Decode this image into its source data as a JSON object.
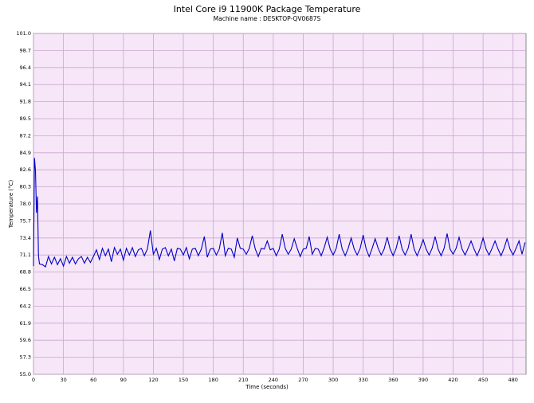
{
  "chart_data": {
    "type": "line",
    "title": "Intel Core i9 11900K Package Temperature",
    "subtitle": "Machine name : DESKTOP-QV0687S",
    "x_label": "Time (seconds)",
    "y_label": "Temperature (°C)",
    "xlim": [
      0,
      493
    ],
    "xticks": [
      0,
      30,
      60,
      90,
      120,
      150,
      180,
      210,
      240,
      270,
      300,
      330,
      360,
      390,
      420,
      450,
      480
    ],
    "ylim": [
      55,
      101
    ],
    "yticks": [
      {
        "value": 55,
        "label": "55.0"
      },
      57.3,
      59.6,
      61.9,
      64.2,
      66.5,
      68.8,
      71.1,
      73.4,
      75.7,
      {
        "value": 78,
        "label": "78.0"
      },
      80.3,
      82.6,
      84.9,
      87.2,
      89.5,
      91.8,
      94.1,
      96.4,
      98.7,
      {
        "value": 101,
        "label": "101.0"
      }
    ],
    "grid": true,
    "title_color": "#1a8a1a",
    "background": "#f6e6f8",
    "series": [
      {
        "color": "#0000c8",
        "x": [
          0,
          1,
          2,
          3,
          4,
          5,
          6,
          9,
          12,
          15,
          18,
          21,
          24,
          27,
          30,
          33,
          36,
          39,
          42,
          45,
          48,
          51,
          54,
          57,
          60,
          63,
          66,
          69,
          72,
          75,
          78,
          81,
          84,
          87,
          90,
          93,
          96,
          99,
          102,
          105,
          108,
          111,
          114,
          117,
          120,
          123,
          126,
          129,
          132,
          135,
          138,
          141,
          144,
          147,
          150,
          153,
          156,
          159,
          162,
          165,
          168,
          171,
          174,
          177,
          180,
          183,
          186,
          189,
          192,
          195,
          198,
          201,
          204,
          207,
          210,
          213,
          216,
          219,
          222,
          225,
          228,
          231,
          234,
          237,
          240,
          243,
          246,
          249,
          252,
          255,
          258,
          261,
          264,
          267,
          270,
          273,
          276,
          279,
          282,
          285,
          288,
          291,
          294,
          297,
          300,
          303,
          306,
          309,
          312,
          315,
          318,
          321,
          324,
          327,
          330,
          333,
          336,
          339,
          342,
          345,
          348,
          351,
          354,
          357,
          360,
          363,
          366,
          369,
          372,
          375,
          378,
          381,
          384,
          387,
          390,
          393,
          396,
          399,
          402,
          405,
          408,
          411,
          414,
          417,
          420,
          423,
          426,
          429,
          432,
          435,
          438,
          441,
          444,
          447,
          450,
          453,
          456,
          459,
          462,
          465,
          468,
          471,
          474,
          477,
          480,
          483,
          486,
          489,
          492
        ],
        "values": [
          69.6,
          84.2,
          82.5,
          76.8,
          79.0,
          71.0,
          69.9,
          69.8,
          69.5,
          70.9,
          69.9,
          70.8,
          69.8,
          70.6,
          69.6,
          70.9,
          70.0,
          70.8,
          69.9,
          70.6,
          70.9,
          70.0,
          70.8,
          70.1,
          70.9,
          71.8,
          70.5,
          72.0,
          71.0,
          71.9,
          70.2,
          72.1,
          71.2,
          71.9,
          70.4,
          72.0,
          71.1,
          72.1,
          70.9,
          71.8,
          72.0,
          71.0,
          71.9,
          74.4,
          71.2,
          72.0,
          70.5,
          71.9,
          72.1,
          71.0,
          71.9,
          70.3,
          72.0,
          71.9,
          71.1,
          72.1,
          70.6,
          71.9,
          72.0,
          71.0,
          71.9,
          73.6,
          70.8,
          71.9,
          72.0,
          71.1,
          71.9,
          74.1,
          71.0,
          72.0,
          71.9,
          70.8,
          73.4,
          72.0,
          71.9,
          71.2,
          72.0,
          73.7,
          71.9,
          70.9,
          72.0,
          71.9,
          73.0,
          71.8,
          72.0,
          71.0,
          71.9,
          73.9,
          72.0,
          71.2,
          71.9,
          73.3,
          72.0,
          70.9,
          71.9,
          72.0,
          73.6,
          71.2,
          72.0,
          71.9,
          71.0,
          72.1,
          73.5,
          71.9,
          71.1,
          72.0,
          73.9,
          71.9,
          71.0,
          72.0,
          73.4,
          71.9,
          71.1,
          72.0,
          73.8,
          71.9,
          70.9,
          72.0,
          73.3,
          72.0,
          71.1,
          71.9,
          73.5,
          71.9,
          71.0,
          72.0,
          73.7,
          71.9,
          71.1,
          72.0,
          73.9,
          71.9,
          71.0,
          72.0,
          73.2,
          71.9,
          71.1,
          72.0,
          73.6,
          71.9,
          71.0,
          72.0,
          74.0,
          71.9,
          71.2,
          72.0,
          73.5,
          71.9,
          71.1,
          72.0,
          73.0,
          71.9,
          71.0,
          72.0,
          73.4,
          71.9,
          71.1,
          72.0,
          73.0,
          71.9,
          71.0,
          72.0,
          73.3,
          71.9,
          71.1,
          72.0,
          73.0,
          71.2,
          72.8
        ]
      }
    ]
  }
}
